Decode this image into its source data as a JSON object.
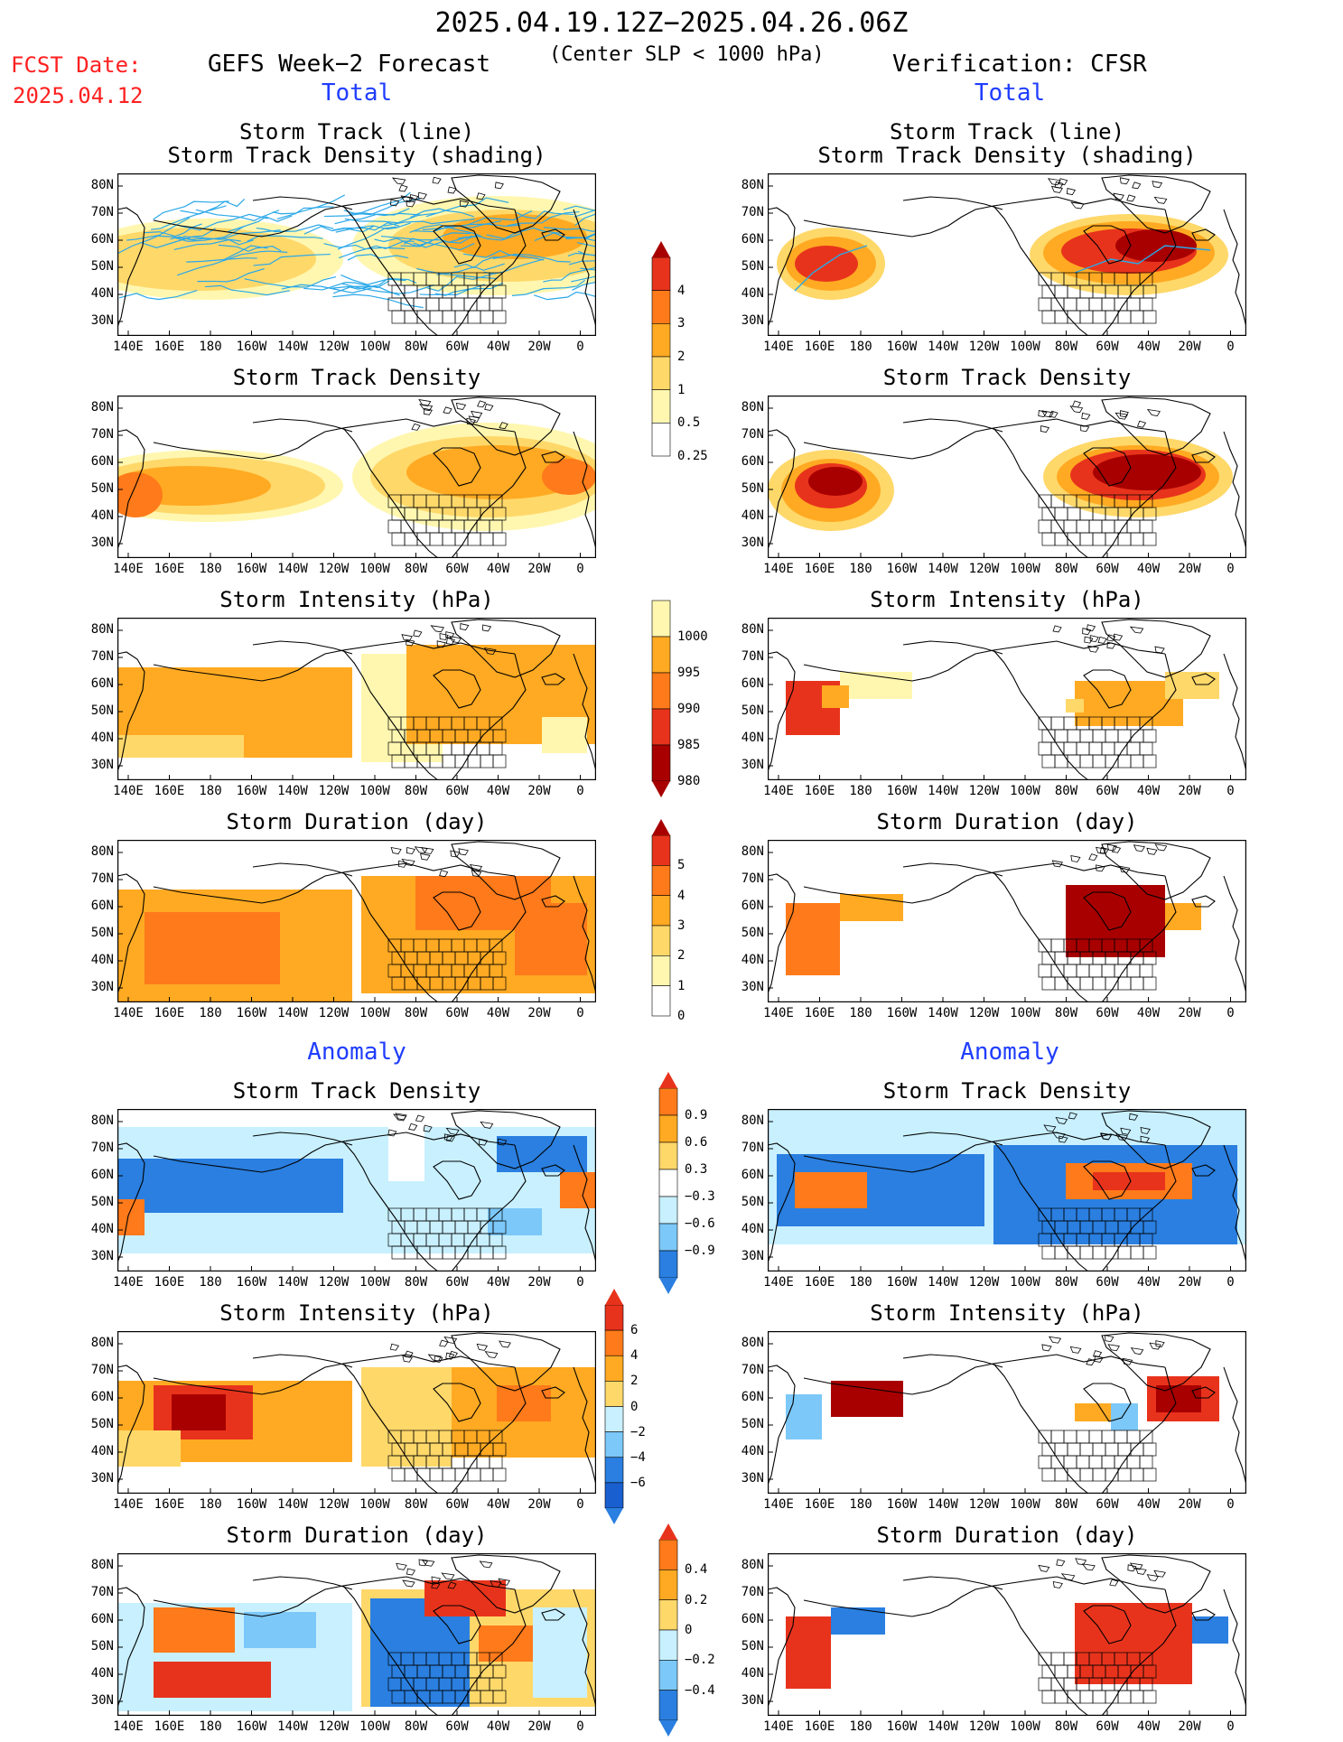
{
  "header": {
    "title": "2025.04.19.12Z−2025.04.26.06Z",
    "subtitle": "(Center SLP < 1000 hPa)",
    "fcst_label": "FCST Date:",
    "fcst_date": "2025.04.12",
    "left_label": "GEFS Week−2 Forecast",
    "right_label": "Verification: CFSR",
    "total_label": "Total",
    "anomaly_label": "Anomaly"
  },
  "axes": {
    "lat_labels": [
      "80N",
      "70N",
      "60N",
      "50N",
      "40N",
      "30N"
    ],
    "lon_labels": [
      "140E",
      "160E",
      "180",
      "160W",
      "140W",
      "120W",
      "100W",
      "80W",
      "60W",
      "40W",
      "20W",
      "0"
    ]
  },
  "panels": {
    "row1_title_a": "Storm Track (line)",
    "row1_title_b": "Storm Track Density (shading)",
    "track_density": "Storm Track Density",
    "intensity": "Storm Intensity (hPa)",
    "duration": "Storm Duration (day)"
  },
  "colorbars": {
    "total_density": [
      "0.25",
      "0.5",
      "1",
      "2",
      "3",
      "4"
    ],
    "total_intensity": [
      "1000",
      "995",
      "990",
      "985",
      "980"
    ],
    "total_duration": [
      "0",
      "1",
      "2",
      "3",
      "4",
      "5"
    ],
    "anom_density": [
      "0.9",
      "0.6",
      "0.3",
      "−0.3",
      "−0.6",
      "−0.9"
    ],
    "anom_intensity": [
      "6",
      "4",
      "2",
      "0",
      "−2",
      "−4",
      "−6"
    ],
    "anom_duration": [
      "0.4",
      "0.2",
      "0",
      "−0.2",
      "−0.4"
    ]
  },
  "colors": {
    "pale_yellow": "#fff7b0",
    "yellow": "#ffd86a",
    "orange": "#ffaa22",
    "dark_orange": "#ff7a1a",
    "red": "#e8331c",
    "dark_red": "#a80000",
    "light_blue": "#c8f0ff",
    "mid_blue": "#7cc8f8",
    "blue": "#2a7fe0",
    "track_line": "#2aa8e8"
  }
}
